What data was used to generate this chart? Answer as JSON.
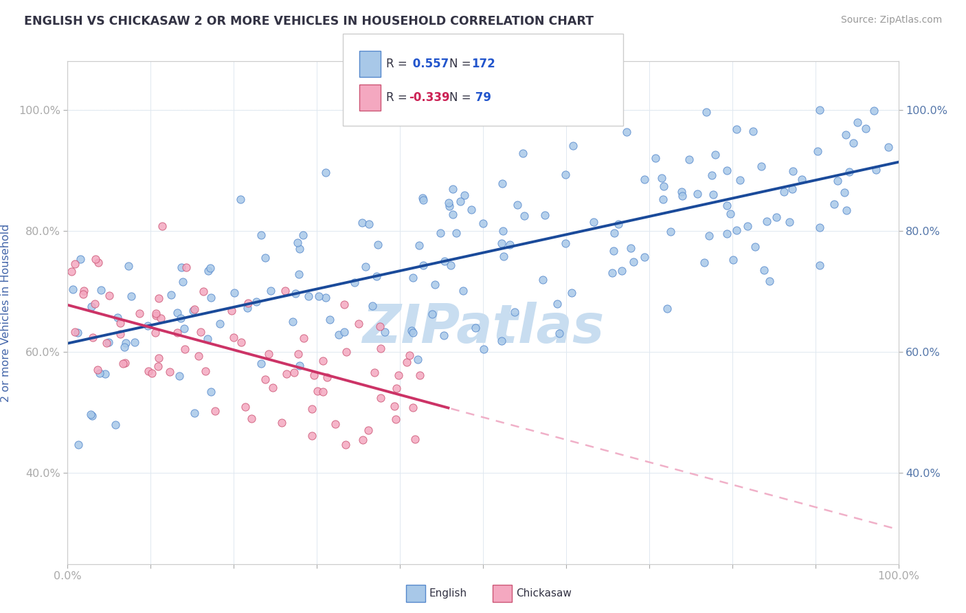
{
  "title": "ENGLISH VS CHICKASAW 2 OR MORE VEHICLES IN HOUSEHOLD CORRELATION CHART",
  "source": "Source: ZipAtlas.com",
  "ylabel": "2 or more Vehicles in Household",
  "xlim": [
    0,
    100
  ],
  "ylim": [
    25,
    108
  ],
  "x_ticks": [
    0,
    10,
    20,
    30,
    40,
    50,
    60,
    70,
    80,
    90,
    100
  ],
  "x_tick_labels": [
    "0.0%",
    "",
    "",
    "",
    "",
    "",
    "",
    "",
    "",
    "",
    "100.0%"
  ],
  "y_ticks": [
    40,
    60,
    80,
    100
  ],
  "y_tick_labels": [
    "40.0%",
    "60.0%",
    "80.0%",
    "100.0%"
  ],
  "english_R": 0.557,
  "english_N": 172,
  "chickasaw_R": -0.339,
  "chickasaw_N": 79,
  "english_color": "#a8c8e8",
  "chickasaw_color": "#f4a8c0",
  "english_edge_color": "#5588cc",
  "chickasaw_edge_color": "#cc5575",
  "english_line_color": "#1a4a9a",
  "chickasaw_line_solid_color": "#cc3366",
  "chickasaw_line_dash_color": "#f0b0c8",
  "watermark_text": "ZIPatlas",
  "watermark_color": "#c8ddf0",
  "title_color": "#333344",
  "source_color": "#999999",
  "ylabel_color": "#4466aa",
  "tick_color": "#5577aa",
  "grid_color": "#e0e8f0",
  "background_color": "#ffffff",
  "legend_box_color": "#ffffff",
  "legend_border_color": "#cccccc",
  "eng_line_start_x": 0,
  "eng_line_start_y": 64,
  "eng_line_end_x": 100,
  "eng_line_end_y": 90,
  "chk_line_start_x": 0,
  "chk_line_start_y": 70,
  "chk_line_end_x": 46,
  "chk_line_end_y": 50
}
